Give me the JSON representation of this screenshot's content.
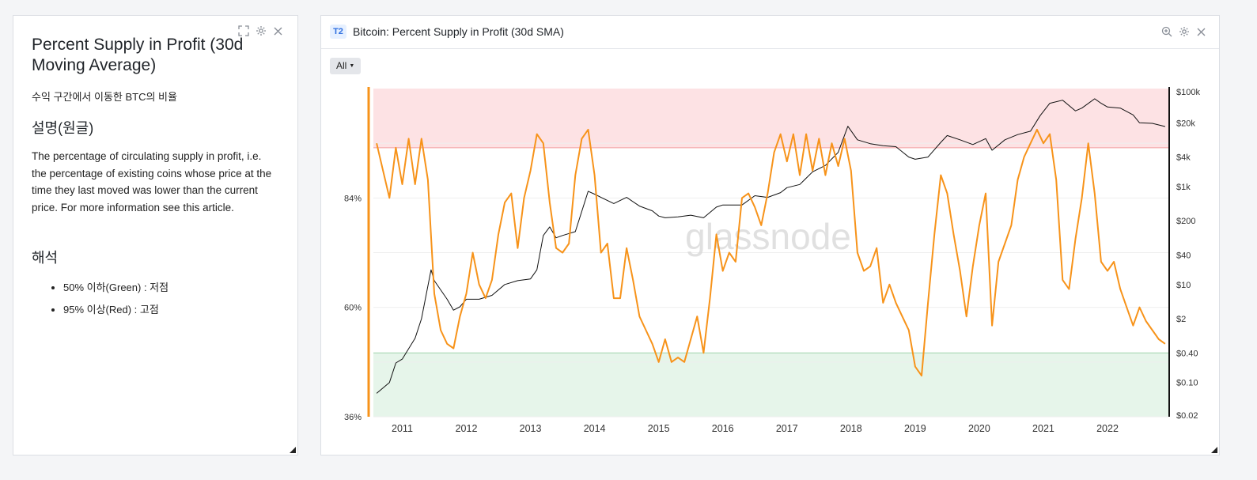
{
  "info_panel": {
    "title": "Percent Supply in Profit (30d Moving Average)",
    "subtitle": "수익 구간에서 이동한 BTC의 비율",
    "description_heading": "설명(원글)",
    "description": "The percentage of circulating supply in profit, i.e. the percentage of existing coins whose price at the time they last moved was lower than the current price. For more information see this article.",
    "interpretation_heading": "해석",
    "interpretation_items": [
      "50% 이하(Green) : 저점",
      "95% 이상(Red) : 고점"
    ],
    "icons": [
      "expand-icon",
      "gear-icon",
      "close-icon"
    ]
  },
  "chart_panel": {
    "badge": "T2",
    "title": "Bitcoin: Percent Supply in Profit (30d SMA)",
    "range_button": "All",
    "icons": [
      "zoom-icon",
      "gear-icon",
      "close-icon"
    ]
  },
  "chart_data": {
    "type": "line",
    "title": "Bitcoin: Percent Supply in Profit (30d SMA)",
    "watermark": "glassnode",
    "x_ticks": [
      "2011",
      "2012",
      "2013",
      "2014",
      "2015",
      "2016",
      "2017",
      "2018",
      "2019",
      "2020",
      "2021",
      "2022"
    ],
    "y_left_ticks": [
      "36%",
      "60%",
      "84%"
    ],
    "y_left_range": [
      36,
      108
    ],
    "y_right_ticks": [
      "$0.02",
      "$0.10",
      "$0.40",
      "$2",
      "$10",
      "$40",
      "$200",
      "$1k",
      "$4k",
      "$20k",
      "$100k"
    ],
    "y_right_log": true,
    "bands": [
      {
        "name": "red zone",
        "from": 95,
        "to": 108,
        "color": "#fde2e4",
        "line_color": "#f2a0a0"
      },
      {
        "name": "green zone",
        "from": 36,
        "to": 50,
        "color": "#e6f5ea",
        "line_color": "#9fd4ad"
      }
    ],
    "series": [
      {
        "color": "#f7931a",
        "axis": "left",
        "points": [
          [
            2010.6,
            96
          ],
          [
            2010.7,
            90
          ],
          [
            2010.8,
            84
          ],
          [
            2010.9,
            95
          ],
          [
            2011.0,
            87
          ],
          [
            2011.1,
            97
          ],
          [
            2011.2,
            87
          ],
          [
            2011.3,
            97
          ],
          [
            2011.4,
            88
          ],
          [
            2011.5,
            63
          ],
          [
            2011.6,
            55
          ],
          [
            2011.7,
            52
          ],
          [
            2011.8,
            51
          ],
          [
            2011.9,
            58
          ],
          [
            2012.0,
            63
          ],
          [
            2012.1,
            72
          ],
          [
            2012.2,
            65
          ],
          [
            2012.3,
            62
          ],
          [
            2012.4,
            66
          ],
          [
            2012.5,
            76
          ],
          [
            2012.6,
            83
          ],
          [
            2012.7,
            85
          ],
          [
            2012.8,
            73
          ],
          [
            2012.9,
            84
          ],
          [
            2013.0,
            90
          ],
          [
            2013.1,
            98
          ],
          [
            2013.2,
            96
          ],
          [
            2013.3,
            83
          ],
          [
            2013.4,
            73
          ],
          [
            2013.5,
            72
          ],
          [
            2013.6,
            74
          ],
          [
            2013.7,
            89
          ],
          [
            2013.8,
            97
          ],
          [
            2013.9,
            99
          ],
          [
            2014.0,
            89
          ],
          [
            2014.1,
            72
          ],
          [
            2014.2,
            74
          ],
          [
            2014.3,
            62
          ],
          [
            2014.4,
            62
          ],
          [
            2014.5,
            73
          ],
          [
            2014.6,
            66
          ],
          [
            2014.7,
            58
          ],
          [
            2014.8,
            55
          ],
          [
            2014.9,
            52
          ],
          [
            2015.0,
            48
          ],
          [
            2015.1,
            53
          ],
          [
            2015.2,
            48
          ],
          [
            2015.3,
            49
          ],
          [
            2015.4,
            48
          ],
          [
            2015.5,
            53
          ],
          [
            2015.6,
            58
          ],
          [
            2015.7,
            50
          ],
          [
            2015.8,
            62
          ],
          [
            2015.9,
            76
          ],
          [
            2016.0,
            68
          ],
          [
            2016.1,
            72
          ],
          [
            2016.2,
            70
          ],
          [
            2016.3,
            84
          ],
          [
            2016.4,
            85
          ],
          [
            2016.5,
            82
          ],
          [
            2016.6,
            78
          ],
          [
            2016.7,
            85
          ],
          [
            2016.8,
            94
          ],
          [
            2016.9,
            98
          ],
          [
            2017.0,
            92
          ],
          [
            2017.1,
            98
          ],
          [
            2017.2,
            89
          ],
          [
            2017.3,
            98
          ],
          [
            2017.4,
            90
          ],
          [
            2017.5,
            97
          ],
          [
            2017.6,
            89
          ],
          [
            2017.7,
            96
          ],
          [
            2017.8,
            91
          ],
          [
            2017.9,
            97
          ],
          [
            2018.0,
            90
          ],
          [
            2018.1,
            72
          ],
          [
            2018.2,
            68
          ],
          [
            2018.3,
            69
          ],
          [
            2018.4,
            73
          ],
          [
            2018.5,
            61
          ],
          [
            2018.6,
            65
          ],
          [
            2018.7,
            61
          ],
          [
            2018.8,
            58
          ],
          [
            2018.9,
            55
          ],
          [
            2019.0,
            47
          ],
          [
            2019.1,
            45
          ],
          [
            2019.2,
            61
          ],
          [
            2019.3,
            76
          ],
          [
            2019.4,
            89
          ],
          [
            2019.5,
            85
          ],
          [
            2019.6,
            76
          ],
          [
            2019.7,
            68
          ],
          [
            2019.8,
            58
          ],
          [
            2019.9,
            69
          ],
          [
            2020.0,
            78
          ],
          [
            2020.1,
            85
          ],
          [
            2020.2,
            56
          ],
          [
            2020.3,
            70
          ],
          [
            2020.4,
            74
          ],
          [
            2020.5,
            78
          ],
          [
            2020.6,
            88
          ],
          [
            2020.7,
            93
          ],
          [
            2020.8,
            96
          ],
          [
            2020.9,
            99
          ],
          [
            2021.0,
            96
          ],
          [
            2021.1,
            98
          ],
          [
            2021.2,
            88
          ],
          [
            2021.3,
            66
          ],
          [
            2021.4,
            64
          ],
          [
            2021.5,
            75
          ],
          [
            2021.6,
            84
          ],
          [
            2021.7,
            96
          ],
          [
            2021.8,
            85
          ],
          [
            2021.9,
            70
          ],
          [
            2022.0,
            68
          ],
          [
            2022.1,
            70
          ],
          [
            2022.2,
            64
          ],
          [
            2022.3,
            60
          ],
          [
            2022.4,
            56
          ],
          [
            2022.5,
            60
          ],
          [
            2022.6,
            57
          ],
          [
            2022.7,
            55
          ],
          [
            2022.8,
            53
          ],
          [
            2022.9,
            52
          ]
        ]
      },
      {
        "color": "#111111",
        "axis": "right",
        "points": [
          [
            2010.6,
            0.06
          ],
          [
            2010.8,
            0.1
          ],
          [
            2010.9,
            0.25
          ],
          [
            2011.0,
            0.3
          ],
          [
            2011.2,
            0.8
          ],
          [
            2011.3,
            2
          ],
          [
            2011.45,
            20
          ],
          [
            2011.5,
            12
          ],
          [
            2011.7,
            5
          ],
          [
            2011.8,
            3
          ],
          [
            2011.9,
            3.5
          ],
          [
            2012.0,
            5
          ],
          [
            2012.2,
            5
          ],
          [
            2012.4,
            6
          ],
          [
            2012.6,
            10
          ],
          [
            2012.8,
            12
          ],
          [
            2013.0,
            13
          ],
          [
            2013.1,
            20
          ],
          [
            2013.2,
            100
          ],
          [
            2013.3,
            150
          ],
          [
            2013.4,
            90
          ],
          [
            2013.5,
            100
          ],
          [
            2013.7,
            120
          ],
          [
            2013.9,
            800
          ],
          [
            2014.0,
            700
          ],
          [
            2014.1,
            600
          ],
          [
            2014.3,
            450
          ],
          [
            2014.5,
            600
          ],
          [
            2014.7,
            400
          ],
          [
            2014.9,
            320
          ],
          [
            2015.0,
            250
          ],
          [
            2015.1,
            230
          ],
          [
            2015.3,
            240
          ],
          [
            2015.5,
            260
          ],
          [
            2015.7,
            230
          ],
          [
            2015.9,
            380
          ],
          [
            2016.0,
            420
          ],
          [
            2016.3,
            420
          ],
          [
            2016.5,
            650
          ],
          [
            2016.7,
            600
          ],
          [
            2016.9,
            750
          ],
          [
            2017.0,
            950
          ],
          [
            2017.2,
            1100
          ],
          [
            2017.4,
            2000
          ],
          [
            2017.6,
            2700
          ],
          [
            2017.8,
            5000
          ],
          [
            2017.95,
            17000
          ],
          [
            2018.1,
            9000
          ],
          [
            2018.3,
            7500
          ],
          [
            2018.5,
            6800
          ],
          [
            2018.7,
            6500
          ],
          [
            2018.9,
            4000
          ],
          [
            2019.0,
            3600
          ],
          [
            2019.2,
            4000
          ],
          [
            2019.4,
            8000
          ],
          [
            2019.5,
            11000
          ],
          [
            2019.7,
            9000
          ],
          [
            2019.9,
            7200
          ],
          [
            2020.1,
            9500
          ],
          [
            2020.2,
            5500
          ],
          [
            2020.4,
            9000
          ],
          [
            2020.6,
            11500
          ],
          [
            2020.8,
            13500
          ],
          [
            2020.95,
            28000
          ],
          [
            2021.1,
            50000
          ],
          [
            2021.3,
            58000
          ],
          [
            2021.5,
            35000
          ],
          [
            2021.6,
            40000
          ],
          [
            2021.8,
            62000
          ],
          [
            2021.9,
            50000
          ],
          [
            2022.0,
            42000
          ],
          [
            2022.2,
            40000
          ],
          [
            2022.4,
            29000
          ],
          [
            2022.5,
            20000
          ],
          [
            2022.7,
            19500
          ],
          [
            2022.9,
            16800
          ]
        ]
      }
    ]
  }
}
